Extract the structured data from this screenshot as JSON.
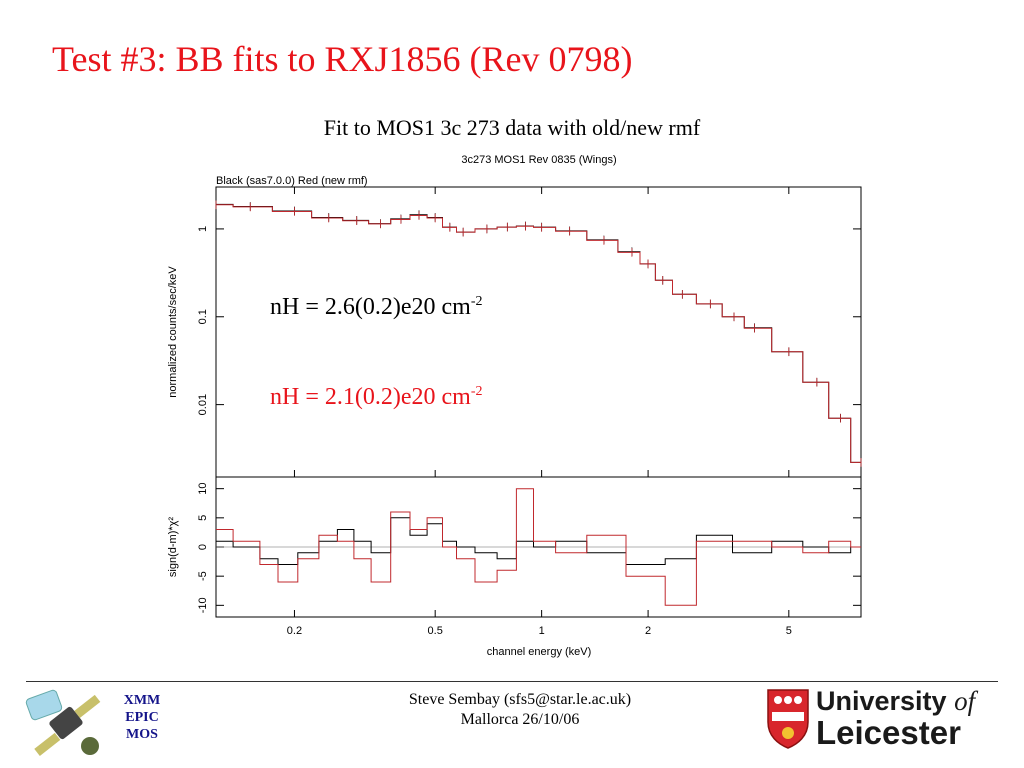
{
  "slide": {
    "title": "Test #3: BB fits to RXJ1856 (Rev 0798)",
    "subtitle": "Fit to MOS1 3c 273 data with old/new rmf"
  },
  "annotations": {
    "nh_old": "nH = 2.6(0.2)e20 cm",
    "nh_old_exp": "-2",
    "nh_new": "nH = 2.1(0.2)e20 cm",
    "nh_new_exp": "-2"
  },
  "footer": {
    "author": "Steve Sembay (sfs5@star.le.ac.uk)",
    "venue": "Mallorca 26/10/06",
    "instrument_line1": "XMM",
    "instrument_line2": "EPIC",
    "instrument_line3": "MOS",
    "university_line1": "University",
    "university_of": "of",
    "university_line2": "Leicester"
  },
  "colors": {
    "title": "#e8141b",
    "series_old": "#000000",
    "series_new": "#c0282d",
    "annotation_new": "#e8141b"
  },
  "chart_data": {
    "type": "line",
    "title": "3c273  MOS1  Rev 0835  (Wings)",
    "legend_text": "Black (sas7.0.0)  Red (new rmf)",
    "xlabel": "channel energy (keV)",
    "xscale": "log",
    "xlim": [
      0.12,
      8
    ],
    "xticks": [
      0.2,
      0.5,
      1,
      2,
      5
    ],
    "xtick_labels": [
      "0.2",
      "0.5",
      "1",
      "2",
      "5"
    ],
    "top_panel": {
      "ylabel": "normalized counts/sec/keV",
      "yscale": "log",
      "ylim": [
        0.0015,
        3
      ],
      "yticks": [
        1,
        0.1,
        0.01
      ],
      "ytick_labels": [
        "1",
        "0.1",
        "0.01"
      ],
      "series": [
        {
          "color": "#000000",
          "x": [
            0.12,
            0.15,
            0.2,
            0.25,
            0.3,
            0.35,
            0.4,
            0.45,
            0.5,
            0.55,
            0.6,
            0.7,
            0.8,
            0.9,
            1.0,
            1.2,
            1.5,
            1.8,
            2.0,
            2.2,
            2.5,
            3.0,
            3.5,
            4.0,
            5.0,
            6.0,
            7.0,
            8.0
          ],
          "y": [
            1.9,
            1.8,
            1.6,
            1.35,
            1.25,
            1.15,
            1.3,
            1.45,
            1.35,
            1.05,
            0.92,
            1.0,
            1.05,
            1.08,
            1.05,
            0.95,
            0.75,
            0.55,
            0.4,
            0.26,
            0.18,
            0.14,
            0.1,
            0.075,
            0.04,
            0.018,
            0.007,
            0.0022
          ]
        },
        {
          "color": "#c0282d",
          "x": [
            0.12,
            0.15,
            0.2,
            0.25,
            0.3,
            0.35,
            0.4,
            0.45,
            0.5,
            0.55,
            0.6,
            0.7,
            0.8,
            0.9,
            1.0,
            1.2,
            1.5,
            1.8,
            2.0,
            2.2,
            2.5,
            3.0,
            3.5,
            4.0,
            5.0,
            6.0,
            7.0,
            8.0
          ],
          "y": [
            1.88,
            1.78,
            1.58,
            1.33,
            1.24,
            1.14,
            1.28,
            1.42,
            1.33,
            1.04,
            0.92,
            1.0,
            1.05,
            1.07,
            1.04,
            0.94,
            0.74,
            0.54,
            0.4,
            0.26,
            0.18,
            0.14,
            0.1,
            0.074,
            0.04,
            0.018,
            0.007,
            0.0022
          ]
        }
      ]
    },
    "bottom_panel": {
      "ylabel": "sign(d-m)*χ²",
      "ylim": [
        -12,
        12
      ],
      "yticks": [
        10,
        5,
        0,
        -5,
        -10
      ],
      "ytick_labels": [
        "10",
        "5",
        "0",
        "-5",
        "-10"
      ],
      "series": [
        {
          "color": "#000000",
          "x": [
            0.12,
            0.15,
            0.17,
            0.19,
            0.22,
            0.25,
            0.28,
            0.31,
            0.35,
            0.4,
            0.45,
            0.5,
            0.55,
            0.6,
            0.7,
            0.8,
            0.9,
            1.0,
            1.2,
            1.5,
            2.0,
            2.5,
            3.0,
            4.0,
            5.0,
            6.0,
            7.0,
            8.0
          ],
          "y": [
            1,
            0,
            -2,
            -3,
            -1,
            1,
            3,
            1,
            -1,
            5,
            2,
            4,
            1,
            0,
            -1,
            -2,
            1,
            0,
            1,
            -1,
            -3,
            -2,
            2,
            -1,
            1,
            0,
            -1,
            0
          ]
        },
        {
          "color": "#c0282d",
          "x": [
            0.12,
            0.15,
            0.17,
            0.19,
            0.22,
            0.25,
            0.28,
            0.31,
            0.35,
            0.4,
            0.45,
            0.5,
            0.55,
            0.6,
            0.7,
            0.8,
            0.9,
            1.0,
            1.2,
            1.5,
            2.0,
            2.5,
            3.0,
            4.0,
            5.0,
            6.0,
            7.0,
            8.0
          ],
          "y": [
            3,
            1,
            -3,
            -6,
            -2,
            2,
            1,
            -2,
            -6,
            6,
            3,
            5,
            0,
            -2,
            -6,
            -4,
            10,
            1,
            -1,
            2,
            -5,
            -10,
            1,
            1,
            0,
            -1,
            1,
            0
          ]
        }
      ]
    }
  }
}
